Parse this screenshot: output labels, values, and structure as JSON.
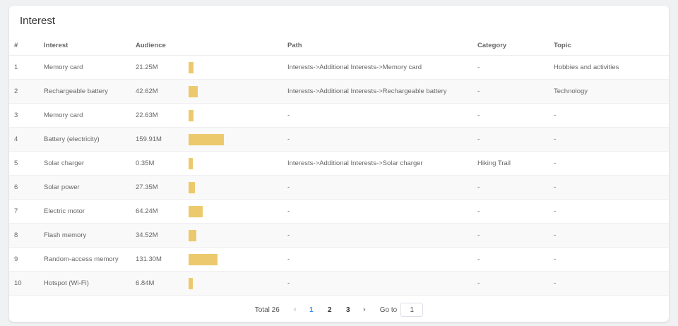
{
  "title": "Interest",
  "columns": {
    "num": "#",
    "interest": "Interest",
    "audience": "Audience",
    "path": "Path",
    "category": "Category",
    "topic": "Topic"
  },
  "bar_color": "#ecc96d",
  "audience_scale_max": 159.91,
  "rows": [
    {
      "num": "1",
      "interest": "Memory card",
      "audience": "21.25M",
      "audience_value": 21.25,
      "path": "Interests->Additional Interests->Memory card",
      "category": "-",
      "topic": "Hobbies and activities"
    },
    {
      "num": "2",
      "interest": "Rechargeable battery",
      "audience": "42.62M",
      "audience_value": 42.62,
      "path": "Interests->Additional Interests->Rechargeable battery",
      "category": "-",
      "topic": "Technology"
    },
    {
      "num": "3",
      "interest": "Memory card",
      "audience": "22.63M",
      "audience_value": 22.63,
      "path": "-",
      "category": "-",
      "topic": "-"
    },
    {
      "num": "4",
      "interest": "Battery (electricity)",
      "audience": "159.91M",
      "audience_value": 159.91,
      "path": "-",
      "category": "-",
      "topic": "-"
    },
    {
      "num": "5",
      "interest": "Solar charger",
      "audience": "0.35M",
      "audience_value": 0.35,
      "path": "Interests->Additional Interests->Solar charger",
      "category": "Hiking Trail",
      "topic": "-"
    },
    {
      "num": "6",
      "interest": "Solar power",
      "audience": "27.35M",
      "audience_value": 27.35,
      "path": "-",
      "category": "-",
      "topic": "-"
    },
    {
      "num": "7",
      "interest": "Electric motor",
      "audience": "64.24M",
      "audience_value": 64.24,
      "path": "-",
      "category": "-",
      "topic": "-"
    },
    {
      "num": "8",
      "interest": "Flash memory",
      "audience": "34.52M",
      "audience_value": 34.52,
      "path": "-",
      "category": "-",
      "topic": "-"
    },
    {
      "num": "9",
      "interest": "Random-access memory",
      "audience": "131.30M",
      "audience_value": 131.3,
      "path": "-",
      "category": "-",
      "topic": "-"
    },
    {
      "num": "10",
      "interest": "Hotspot (Wi-Fi)",
      "audience": "6.84M",
      "audience_value": 6.84,
      "path": "-",
      "category": "-",
      "topic": "-"
    }
  ],
  "pagination": {
    "total_label": "Total 26",
    "prev_icon": "chevron-left-icon",
    "next_icon": "chevron-right-icon",
    "pages": [
      "1",
      "2",
      "3"
    ],
    "active_page": "1",
    "goto_label": "Go to",
    "goto_value": "1"
  }
}
